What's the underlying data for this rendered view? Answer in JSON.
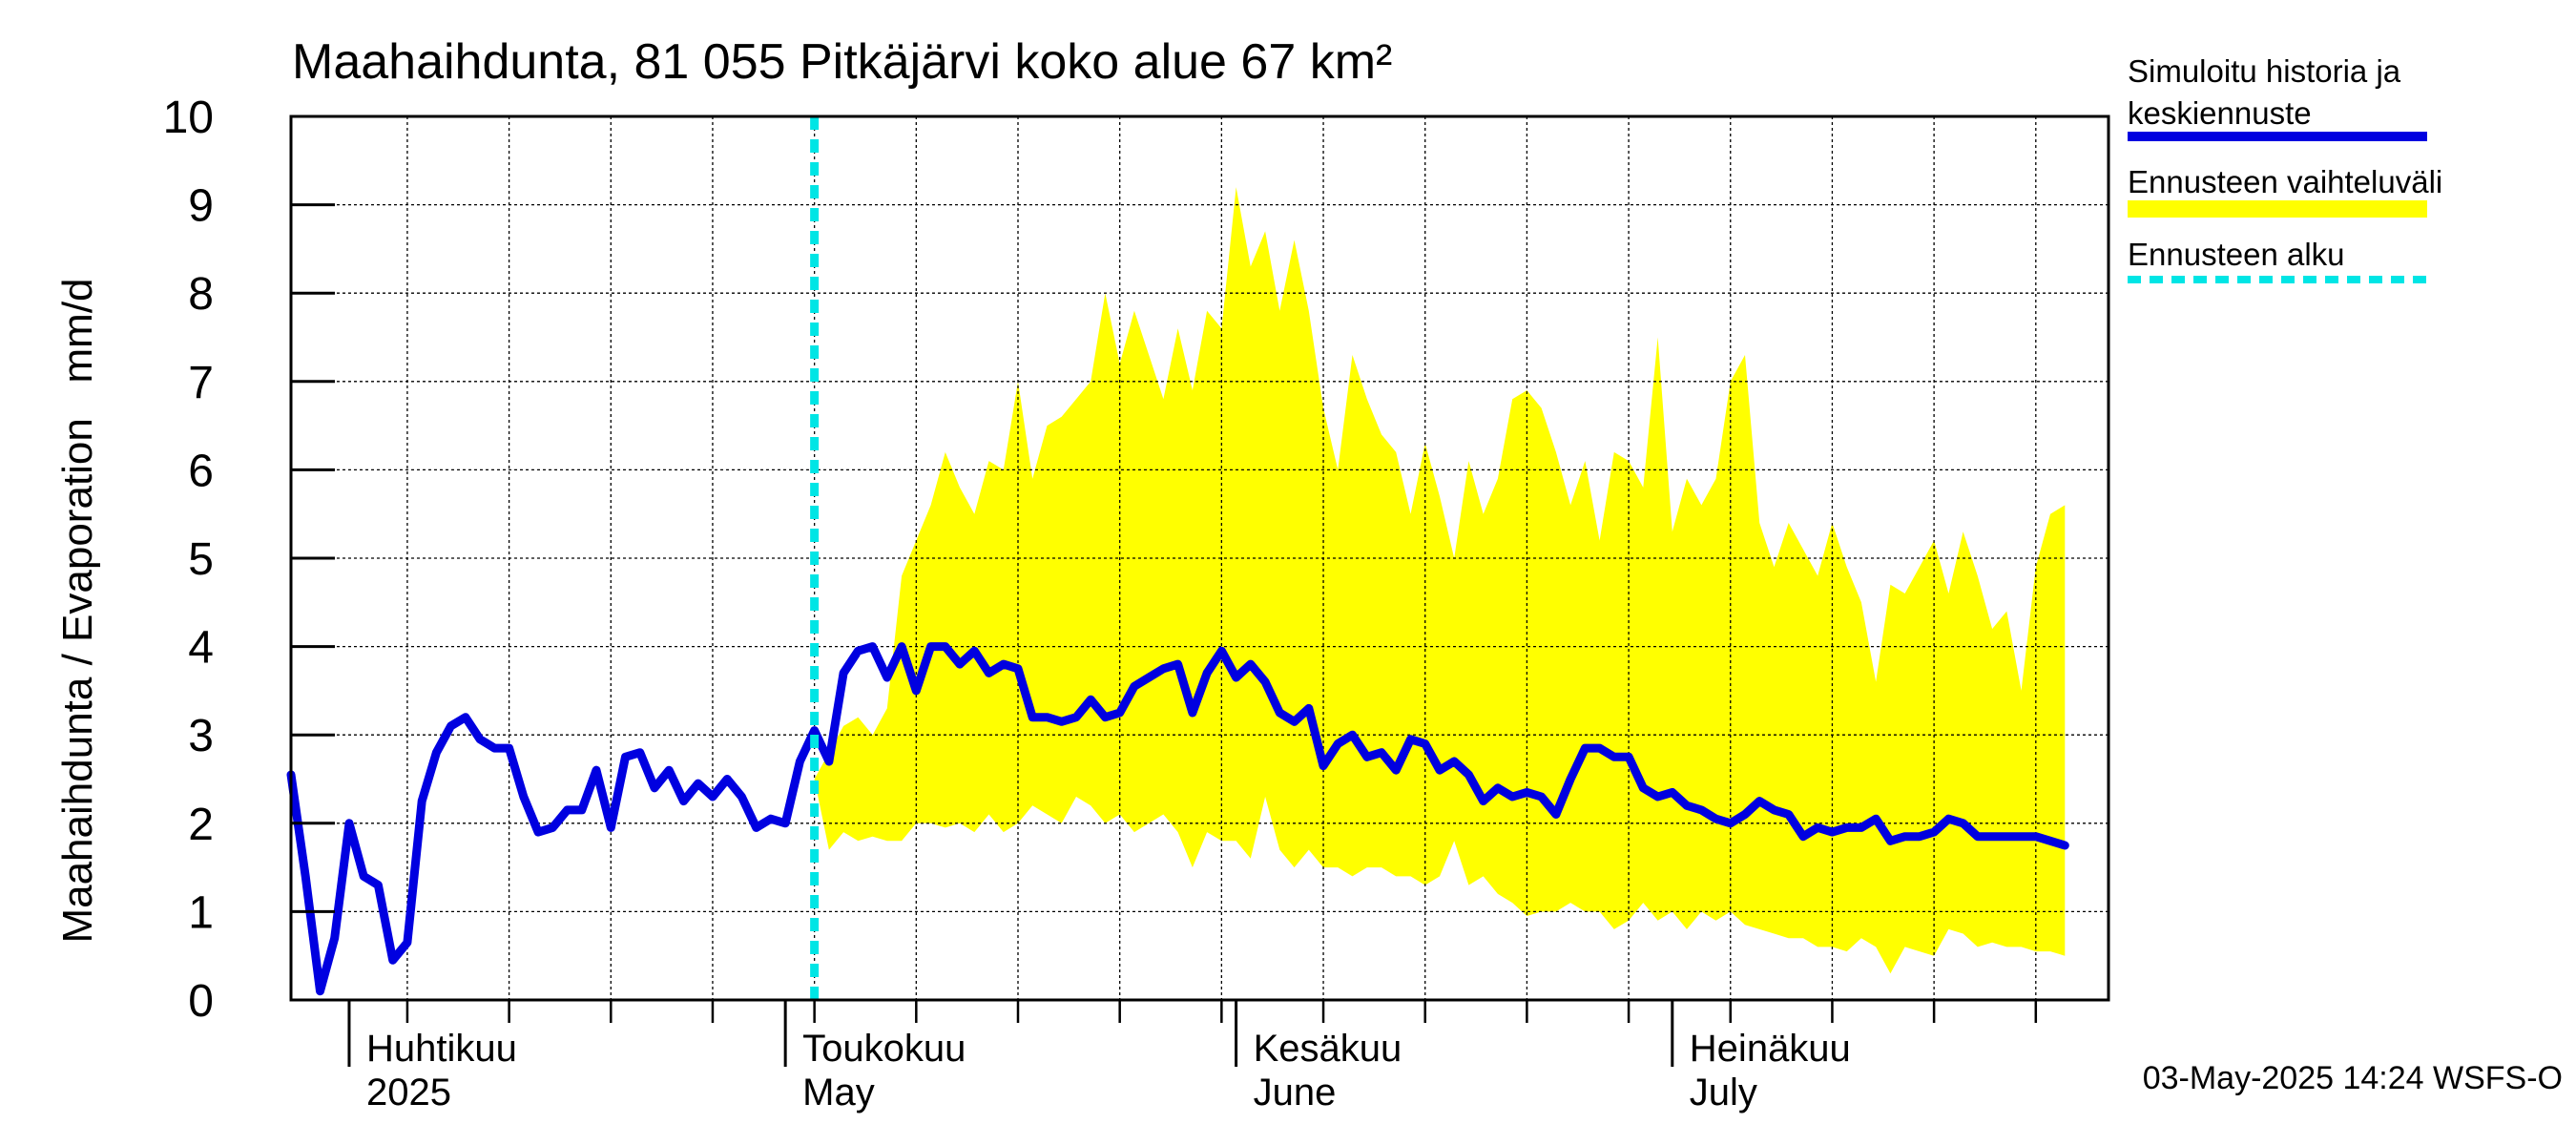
{
  "chart_data": {
    "type": "area",
    "title": "Maahaihdunta, 81 055 Pitkäjärvi koko alue 67 km²",
    "ylabel": "Maahaihdunta / Evaporation   mm/d",
    "ylim": [
      0,
      10
    ],
    "yticks": [
      "0",
      "1",
      "2",
      "3",
      "4",
      "5",
      "6",
      "7",
      "8",
      "9",
      "10"
    ],
    "xlim": [
      "2025-03-28",
      "2025-07-31"
    ],
    "month_labels": [
      {
        "date": "2025-04-01",
        "fi": "Huhtikuu",
        "en": "2025"
      },
      {
        "date": "2025-05-01",
        "fi": "Toukokuu",
        "en": "May"
      },
      {
        "date": "2025-06-01",
        "fi": "Kesäkuu",
        "en": "June"
      },
      {
        "date": "2025-07-01",
        "fi": "Heinäkuu",
        "en": "July"
      }
    ],
    "forecast_start": "2025-05-03",
    "grid": true,
    "legend_position": "right",
    "legend": [
      {
        "label": "Simuloitu historia ja\nkeskiennuste",
        "label_lines": [
          "Simuloitu historia ja",
          "keskiennuste"
        ],
        "color": "#0000e0",
        "style": "solid"
      },
      {
        "label": "Ennusteen vaihteluväli",
        "label_lines": [
          "Ennusteen vaihteluväli"
        ],
        "color": "#ffff00",
        "style": "band"
      },
      {
        "label": "Ennusteen alku",
        "label_lines": [
          "Ennusteen alku"
        ],
        "color": "#00e5e5",
        "style": "dashed"
      }
    ],
    "series": [
      {
        "name": "Simuloitu historia ja keskiennuste",
        "color": "#0000e0",
        "points": [
          [
            "2025-03-28",
            2.55
          ],
          [
            "2025-03-29",
            1.4
          ],
          [
            "2025-03-30",
            0.1
          ],
          [
            "2025-03-31",
            0.7
          ],
          [
            "2025-04-01",
            2.0
          ],
          [
            "2025-04-02",
            1.4
          ],
          [
            "2025-04-03",
            1.3
          ],
          [
            "2025-04-04",
            0.45
          ],
          [
            "2025-04-05",
            0.65
          ],
          [
            "2025-04-06",
            2.25
          ],
          [
            "2025-04-07",
            2.8
          ],
          [
            "2025-04-08",
            3.1
          ],
          [
            "2025-04-09",
            3.2
          ],
          [
            "2025-04-10",
            2.95
          ],
          [
            "2025-04-11",
            2.85
          ],
          [
            "2025-04-12",
            2.85
          ],
          [
            "2025-04-13",
            2.3
          ],
          [
            "2025-04-14",
            1.9
          ],
          [
            "2025-04-15",
            1.95
          ],
          [
            "2025-04-16",
            2.15
          ],
          [
            "2025-04-17",
            2.15
          ],
          [
            "2025-04-18",
            2.6
          ],
          [
            "2025-04-19",
            1.95
          ],
          [
            "2025-04-20",
            2.75
          ],
          [
            "2025-04-21",
            2.8
          ],
          [
            "2025-04-22",
            2.4
          ],
          [
            "2025-04-23",
            2.6
          ],
          [
            "2025-04-24",
            2.25
          ],
          [
            "2025-04-25",
            2.45
          ],
          [
            "2025-04-26",
            2.3
          ],
          [
            "2025-04-27",
            2.5
          ],
          [
            "2025-04-28",
            2.3
          ],
          [
            "2025-04-29",
            1.95
          ],
          [
            "2025-04-30",
            2.05
          ],
          [
            "2025-05-01",
            2.0
          ],
          [
            "2025-05-02",
            2.7
          ],
          [
            "2025-05-03",
            3.05
          ],
          [
            "2025-05-04",
            2.7
          ],
          [
            "2025-05-05",
            3.7
          ],
          [
            "2025-05-06",
            3.95
          ],
          [
            "2025-05-07",
            4.0
          ],
          [
            "2025-05-08",
            3.65
          ],
          [
            "2025-05-09",
            4.0
          ],
          [
            "2025-05-10",
            3.5
          ],
          [
            "2025-05-11",
            4.0
          ],
          [
            "2025-05-12",
            4.0
          ],
          [
            "2025-05-13",
            3.8
          ],
          [
            "2025-05-14",
            3.95
          ],
          [
            "2025-05-15",
            3.7
          ],
          [
            "2025-05-16",
            3.8
          ],
          [
            "2025-05-17",
            3.75
          ],
          [
            "2025-05-18",
            3.2
          ],
          [
            "2025-05-19",
            3.2
          ],
          [
            "2025-05-20",
            3.15
          ],
          [
            "2025-05-21",
            3.2
          ],
          [
            "2025-05-22",
            3.4
          ],
          [
            "2025-05-23",
            3.2
          ],
          [
            "2025-05-24",
            3.25
          ],
          [
            "2025-05-25",
            3.55
          ],
          [
            "2025-05-26",
            3.65
          ],
          [
            "2025-05-27",
            3.75
          ],
          [
            "2025-05-28",
            3.8
          ],
          [
            "2025-05-29",
            3.25
          ],
          [
            "2025-05-30",
            3.7
          ],
          [
            "2025-05-31",
            3.95
          ],
          [
            "2025-06-01",
            3.65
          ],
          [
            "2025-06-02",
            3.8
          ],
          [
            "2025-06-03",
            3.6
          ],
          [
            "2025-06-04",
            3.25
          ],
          [
            "2025-06-05",
            3.15
          ],
          [
            "2025-06-06",
            3.3
          ],
          [
            "2025-06-07",
            2.65
          ],
          [
            "2025-06-08",
            2.9
          ],
          [
            "2025-06-09",
            3.0
          ],
          [
            "2025-06-10",
            2.75
          ],
          [
            "2025-06-11",
            2.8
          ],
          [
            "2025-06-12",
            2.6
          ],
          [
            "2025-06-13",
            2.95
          ],
          [
            "2025-06-14",
            2.9
          ],
          [
            "2025-06-15",
            2.6
          ],
          [
            "2025-06-16",
            2.7
          ],
          [
            "2025-06-17",
            2.55
          ],
          [
            "2025-06-18",
            2.25
          ],
          [
            "2025-06-19",
            2.4
          ],
          [
            "2025-06-20",
            2.3
          ],
          [
            "2025-06-21",
            2.35
          ],
          [
            "2025-06-22",
            2.3
          ],
          [
            "2025-06-23",
            2.1
          ],
          [
            "2025-06-24",
            2.5
          ],
          [
            "2025-06-25",
            2.85
          ],
          [
            "2025-06-26",
            2.85
          ],
          [
            "2025-06-27",
            2.75
          ],
          [
            "2025-06-28",
            2.75
          ],
          [
            "2025-06-29",
            2.4
          ],
          [
            "2025-06-30",
            2.3
          ],
          [
            "2025-07-01",
            2.35
          ],
          [
            "2025-07-02",
            2.2
          ],
          [
            "2025-07-03",
            2.15
          ],
          [
            "2025-07-04",
            2.05
          ],
          [
            "2025-07-05",
            2.0
          ],
          [
            "2025-07-06",
            2.1
          ],
          [
            "2025-07-07",
            2.25
          ],
          [
            "2025-07-08",
            2.15
          ],
          [
            "2025-07-09",
            2.1
          ],
          [
            "2025-07-10",
            1.85
          ],
          [
            "2025-07-11",
            1.95
          ],
          [
            "2025-07-12",
            1.9
          ],
          [
            "2025-07-13",
            1.95
          ],
          [
            "2025-07-14",
            1.95
          ],
          [
            "2025-07-15",
            2.05
          ],
          [
            "2025-07-16",
            1.8
          ],
          [
            "2025-07-17",
            1.85
          ],
          [
            "2025-07-18",
            1.85
          ],
          [
            "2025-07-19",
            1.9
          ],
          [
            "2025-07-20",
            2.05
          ],
          [
            "2025-07-21",
            2.0
          ],
          [
            "2025-07-22",
            1.85
          ],
          [
            "2025-07-23",
            1.85
          ],
          [
            "2025-07-24",
            1.85
          ],
          [
            "2025-07-25",
            1.85
          ],
          [
            "2025-07-26",
            1.85
          ],
          [
            "2025-07-27",
            1.8
          ],
          [
            "2025-07-28",
            1.75
          ]
        ]
      },
      {
        "name": "Ennusteen vaihteluväli",
        "color": "#ffff00",
        "band": [
          [
            "2025-05-03",
            2.5,
            2.5
          ],
          [
            "2025-05-04",
            2.8,
            1.7
          ],
          [
            "2025-05-05",
            3.1,
            1.9
          ],
          [
            "2025-05-06",
            3.2,
            1.8
          ],
          [
            "2025-05-07",
            3.0,
            1.85
          ],
          [
            "2025-05-08",
            3.3,
            1.8
          ],
          [
            "2025-05-09",
            4.8,
            1.8
          ],
          [
            "2025-05-10",
            5.2,
            2.0
          ],
          [
            "2025-05-11",
            5.6,
            2.0
          ],
          [
            "2025-05-12",
            6.2,
            1.95
          ],
          [
            "2025-05-13",
            5.8,
            2.0
          ],
          [
            "2025-05-14",
            5.5,
            1.9
          ],
          [
            "2025-05-15",
            6.1,
            2.1
          ],
          [
            "2025-05-16",
            6.0,
            1.9
          ],
          [
            "2025-05-17",
            7.0,
            2.0
          ],
          [
            "2025-05-18",
            5.9,
            2.2
          ],
          [
            "2025-05-19",
            6.5,
            2.1
          ],
          [
            "2025-05-20",
            6.6,
            2.0
          ],
          [
            "2025-05-21",
            6.8,
            2.3
          ],
          [
            "2025-05-22",
            7.0,
            2.2
          ],
          [
            "2025-05-23",
            8.0,
            2.0
          ],
          [
            "2025-05-24",
            7.2,
            2.1
          ],
          [
            "2025-05-25",
            7.8,
            1.9
          ],
          [
            "2025-05-26",
            7.3,
            2.0
          ],
          [
            "2025-05-27",
            6.8,
            2.1
          ],
          [
            "2025-05-28",
            7.6,
            1.9
          ],
          [
            "2025-05-29",
            6.9,
            1.5
          ],
          [
            "2025-05-30",
            7.8,
            1.9
          ],
          [
            "2025-05-31",
            7.6,
            1.8
          ],
          [
            "2025-06-01",
            9.2,
            1.8
          ],
          [
            "2025-06-02",
            8.3,
            1.6
          ],
          [
            "2025-06-03",
            8.7,
            2.3
          ],
          [
            "2025-06-04",
            7.8,
            1.7
          ],
          [
            "2025-06-05",
            8.6,
            1.5
          ],
          [
            "2025-06-06",
            7.8,
            1.7
          ],
          [
            "2025-06-07",
            6.7,
            1.5
          ],
          [
            "2025-06-08",
            6.0,
            1.5
          ],
          [
            "2025-06-09",
            7.3,
            1.4
          ],
          [
            "2025-06-10",
            6.8,
            1.5
          ],
          [
            "2025-06-11",
            6.4,
            1.5
          ],
          [
            "2025-06-12",
            6.2,
            1.4
          ],
          [
            "2025-06-13",
            5.5,
            1.4
          ],
          [
            "2025-06-14",
            6.3,
            1.3
          ],
          [
            "2025-06-15",
            5.7,
            1.4
          ],
          [
            "2025-06-16",
            5.0,
            1.8
          ],
          [
            "2025-06-17",
            6.1,
            1.3
          ],
          [
            "2025-06-18",
            5.5,
            1.4
          ],
          [
            "2025-06-19",
            5.9,
            1.2
          ],
          [
            "2025-06-20",
            6.8,
            1.1
          ],
          [
            "2025-06-21",
            6.9,
            0.95
          ],
          [
            "2025-06-22",
            6.7,
            1.0
          ],
          [
            "2025-06-23",
            6.2,
            1.0
          ],
          [
            "2025-06-24",
            5.6,
            1.1
          ],
          [
            "2025-06-25",
            6.1,
            1.0
          ],
          [
            "2025-06-26",
            5.2,
            1.0
          ],
          [
            "2025-06-27",
            6.2,
            0.8
          ],
          [
            "2025-06-28",
            6.1,
            0.9
          ],
          [
            "2025-06-29",
            5.8,
            1.1
          ],
          [
            "2025-06-30",
            7.5,
            0.9
          ],
          [
            "2025-07-01",
            5.3,
            1.0
          ],
          [
            "2025-07-02",
            5.9,
            0.8
          ],
          [
            "2025-07-03",
            5.6,
            1.0
          ],
          [
            "2025-07-04",
            5.9,
            0.9
          ],
          [
            "2025-07-05",
            7.0,
            1.0
          ],
          [
            "2025-07-06",
            7.3,
            0.85
          ],
          [
            "2025-07-07",
            5.4,
            0.8
          ],
          [
            "2025-07-08",
            4.9,
            0.75
          ],
          [
            "2025-07-09",
            5.4,
            0.7
          ],
          [
            "2025-07-10",
            5.1,
            0.7
          ],
          [
            "2025-07-11",
            4.8,
            0.6
          ],
          [
            "2025-07-12",
            5.4,
            0.6
          ],
          [
            "2025-07-13",
            4.9,
            0.55
          ],
          [
            "2025-07-14",
            4.5,
            0.7
          ],
          [
            "2025-07-15",
            3.6,
            0.6
          ],
          [
            "2025-07-16",
            4.7,
            0.3
          ],
          [
            "2025-07-17",
            4.6,
            0.6
          ],
          [
            "2025-07-18",
            4.9,
            0.55
          ],
          [
            "2025-07-19",
            5.2,
            0.5
          ],
          [
            "2025-07-20",
            4.6,
            0.8
          ],
          [
            "2025-07-21",
            5.3,
            0.75
          ],
          [
            "2025-07-22",
            4.8,
            0.6
          ],
          [
            "2025-07-23",
            4.2,
            0.65
          ],
          [
            "2025-07-24",
            4.4,
            0.6
          ],
          [
            "2025-07-25",
            3.5,
            0.6
          ],
          [
            "2025-07-26",
            4.9,
            0.55
          ],
          [
            "2025-07-27",
            5.5,
            0.55
          ],
          [
            "2025-07-28",
            5.6,
            0.5
          ]
        ]
      }
    ],
    "footer": "03-May-2025 14:24 WSFS-O"
  }
}
